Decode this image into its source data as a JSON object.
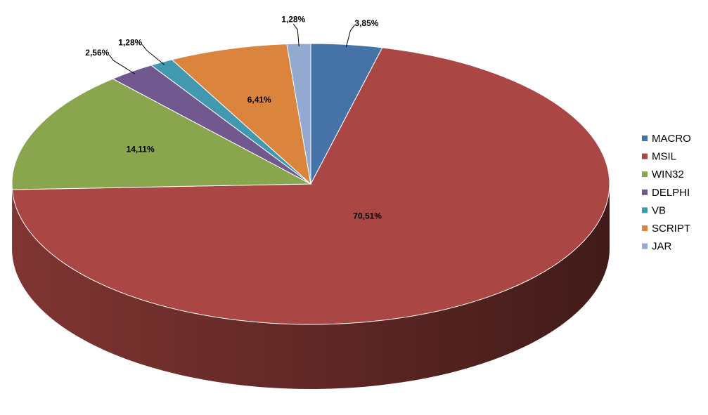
{
  "chart_data": {
    "type": "pie3d",
    "categories": [
      "MACRO",
      "MSIL",
      "WIN32",
      "DELPHI",
      "VB",
      "SCRIPT",
      "JAR"
    ],
    "values": [
      3.85,
      70.51,
      14.11,
      2.56,
      1.28,
      6.41,
      1.28
    ],
    "value_labels": [
      "3,85%",
      "70,51%",
      "14,11%",
      "2,56%",
      "1,28%",
      "6,41%",
      "1,28%"
    ],
    "colors": [
      "#4572a7",
      "#aa4643",
      "#89a54e",
      "#71588f",
      "#4198af",
      "#db843d",
      "#93a9cf"
    ],
    "legend": "right"
  }
}
